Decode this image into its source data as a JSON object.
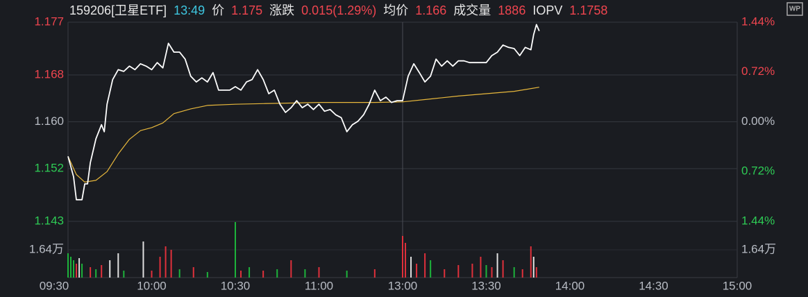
{
  "chart_data": {
    "type": "intraday",
    "header": {
      "title": "159206[卫星ETF]",
      "time": "13:49",
      "items": [
        {
          "label": "价",
          "value": "1.175"
        },
        {
          "label": "涨跌",
          "value": "0.015(1.29%)"
        },
        {
          "label": "均价",
          "value": "1.166"
        },
        {
          "label": "成交量",
          "value": "1886"
        },
        {
          "label": "IOPV",
          "value": "1.1758"
        }
      ]
    },
    "xlim": [
      0,
      240
    ],
    "xticks": [
      {
        "value": 0,
        "label": "09:30"
      },
      {
        "value": 30,
        "label": "10:00"
      },
      {
        "value": 60,
        "label": "10:30"
      },
      {
        "value": 90,
        "label": "11:00"
      },
      {
        "value": 120,
        "label": "13:00"
      },
      {
        "value": 150,
        "label": "13:30"
      },
      {
        "value": 180,
        "label": "14:00"
      },
      {
        "value": 210,
        "label": "14:30"
      },
      {
        "value": 240,
        "label": "15:00"
      }
    ],
    "ylim": [
      1.143,
      1.177
    ],
    "yticks": [
      1.177,
      1.168,
      {
        "value": 1.16,
        "label": "1.160"
      },
      1.152,
      1.143
    ],
    "y2lim": [
      -1.44,
      1.44
    ],
    "y2ticks": [
      {
        "value": 1.44,
        "label": "1.44%"
      },
      {
        "value": 0.72,
        "label": "0.72%"
      },
      {
        "value": 0,
        "label": "0.00%"
      },
      {
        "value": -0.72,
        "label": "0.72%"
      },
      {
        "value": -1.44,
        "label": "1.44%"
      }
    ],
    "price": {
      "color": "#ffffff",
      "x": [
        0,
        2,
        3,
        5,
        6,
        7,
        8,
        10,
        12,
        13,
        14,
        16,
        18,
        20,
        22,
        24,
        26,
        28,
        30,
        32,
        34,
        36,
        38,
        40,
        42,
        44,
        46,
        48,
        50,
        52,
        54,
        56,
        58,
        60,
        62,
        64,
        66,
        68,
        70,
        72,
        74,
        76,
        78,
        80,
        82,
        84,
        86,
        88,
        90,
        92,
        94,
        96,
        98,
        100,
        102,
        104,
        106,
        108,
        110,
        112,
        114,
        116,
        118,
        120,
        122,
        124,
        126,
        128,
        130,
        132,
        134,
        136,
        138,
        140,
        142,
        144,
        146,
        148,
        150,
        152,
        154,
        156,
        158,
        160,
        162,
        164,
        166,
        167,
        168,
        169
      ],
      "values": [
        1.1541,
        1.1506,
        1.1467,
        1.1467,
        1.1494,
        1.1494,
        1.153,
        1.1571,
        1.1595,
        1.1583,
        1.163,
        1.1672,
        1.1689,
        1.1686,
        1.1695,
        1.1689,
        1.1699,
        1.1695,
        1.1689,
        1.1701,
        1.1692,
        1.1734,
        1.1719,
        1.1719,
        1.1707,
        1.1678,
        1.1668,
        1.1675,
        1.1668,
        1.1684,
        1.1654,
        1.1654,
        1.1654,
        1.166,
        1.1654,
        1.1668,
        1.1672,
        1.1689,
        1.1672,
        1.1648,
        1.1654,
        1.163,
        1.1616,
        1.1624,
        1.1636,
        1.1624,
        1.163,
        1.1621,
        1.163,
        1.1618,
        1.1621,
        1.1612,
        1.1607,
        1.1583,
        1.1595,
        1.1601,
        1.1612,
        1.163,
        1.1654,
        1.1636,
        1.1642,
        1.1633,
        1.1636,
        1.1636,
        1.1678,
        1.1699,
        1.1684,
        1.1668,
        1.1678,
        1.1707,
        1.1695,
        1.1704,
        1.1695,
        1.1704,
        1.1704,
        1.1701,
        1.1701,
        1.1701,
        1.1701,
        1.1713,
        1.1719,
        1.1731,
        1.1727,
        1.1725,
        1.1713,
        1.1727,
        1.1723,
        1.1749,
        1.1766,
        1.1755
      ]
    },
    "average": {
      "color": "#e8b83c",
      "x": [
        0,
        3,
        6,
        10,
        14,
        18,
        22,
        26,
        30,
        34,
        38,
        44,
        50,
        60,
        70,
        80,
        90,
        100,
        110,
        120,
        130,
        140,
        150,
        160,
        169
      ],
      "values": [
        1.1541,
        1.151,
        1.1497,
        1.15,
        1.1515,
        1.1545,
        1.157,
        1.1585,
        1.159,
        1.1598,
        1.1614,
        1.1622,
        1.1628,
        1.163,
        1.1631,
        1.1632,
        1.1633,
        1.1633,
        1.1633,
        1.1634,
        1.1639,
        1.1644,
        1.1648,
        1.1652,
        1.1659
      ]
    },
    "volume": {
      "vlim": [
        0,
        32800
      ],
      "vticks": [
        {
          "value": 16400,
          "label": "1.64万"
        }
      ],
      "x": [
        0,
        1,
        2,
        3,
        4,
        5,
        8,
        10,
        12,
        15,
        18,
        20,
        27,
        30,
        33,
        35,
        37,
        40,
        45,
        50,
        60,
        62,
        65,
        70,
        75,
        80,
        85,
        90,
        100,
        110,
        120,
        121,
        123,
        125,
        128,
        130,
        135,
        140,
        145,
        148,
        150,
        152,
        154,
        156,
        160,
        163,
        166,
        167,
        168
      ],
      "values": [
        14350,
        12300,
        10250,
        8200,
        11480,
        8200,
        6150,
        4920,
        7380,
        10250,
        14350,
        4100,
        21320,
        4100,
        12300,
        18450,
        16400,
        4920,
        6150,
        3280,
        32800,
        4100,
        6150,
        4100,
        4920,
        10250,
        4920,
        6150,
        4100,
        4920,
        24600,
        20500,
        12300,
        8200,
        14350,
        10250,
        4920,
        7380,
        8200,
        12300,
        7380,
        6150,
        14350,
        10250,
        6150,
        4920,
        18450,
        12300,
        6150
      ],
      "colors": [
        "#1db33b",
        "#1db33b",
        "#1db33b",
        "#e0303b",
        "#e0e0e0",
        "#1db33b",
        "#e0303b",
        "#1db33b",
        "#e0303b",
        "#e0e0e0",
        "#e0e0e0",
        "#1db33b",
        "#e0e0e0",
        "#e0303b",
        "#e0303b",
        "#e0303b",
        "#e0303b",
        "#1db33b",
        "#e0303b",
        "#1db33b",
        "#1db33b",
        "#e0303b",
        "#1db33b",
        "#e0303b",
        "#1db33b",
        "#e0303b",
        "#1db33b",
        "#e0303b",
        "#1db33b",
        "#e0303b",
        "#e0303b",
        "#e0303b",
        "#e0e0e0",
        "#e0303b",
        "#e0303b",
        "#1db33b",
        "#e0303b",
        "#e0303b",
        "#e0303b",
        "#e0303b",
        "#1db33b",
        "#e0303b",
        "#e0e0e0",
        "#e0303b",
        "#1db33b",
        "#e0303b",
        "#e0303b",
        "#e0e0e0",
        "#e0303b"
      ]
    }
  }
}
